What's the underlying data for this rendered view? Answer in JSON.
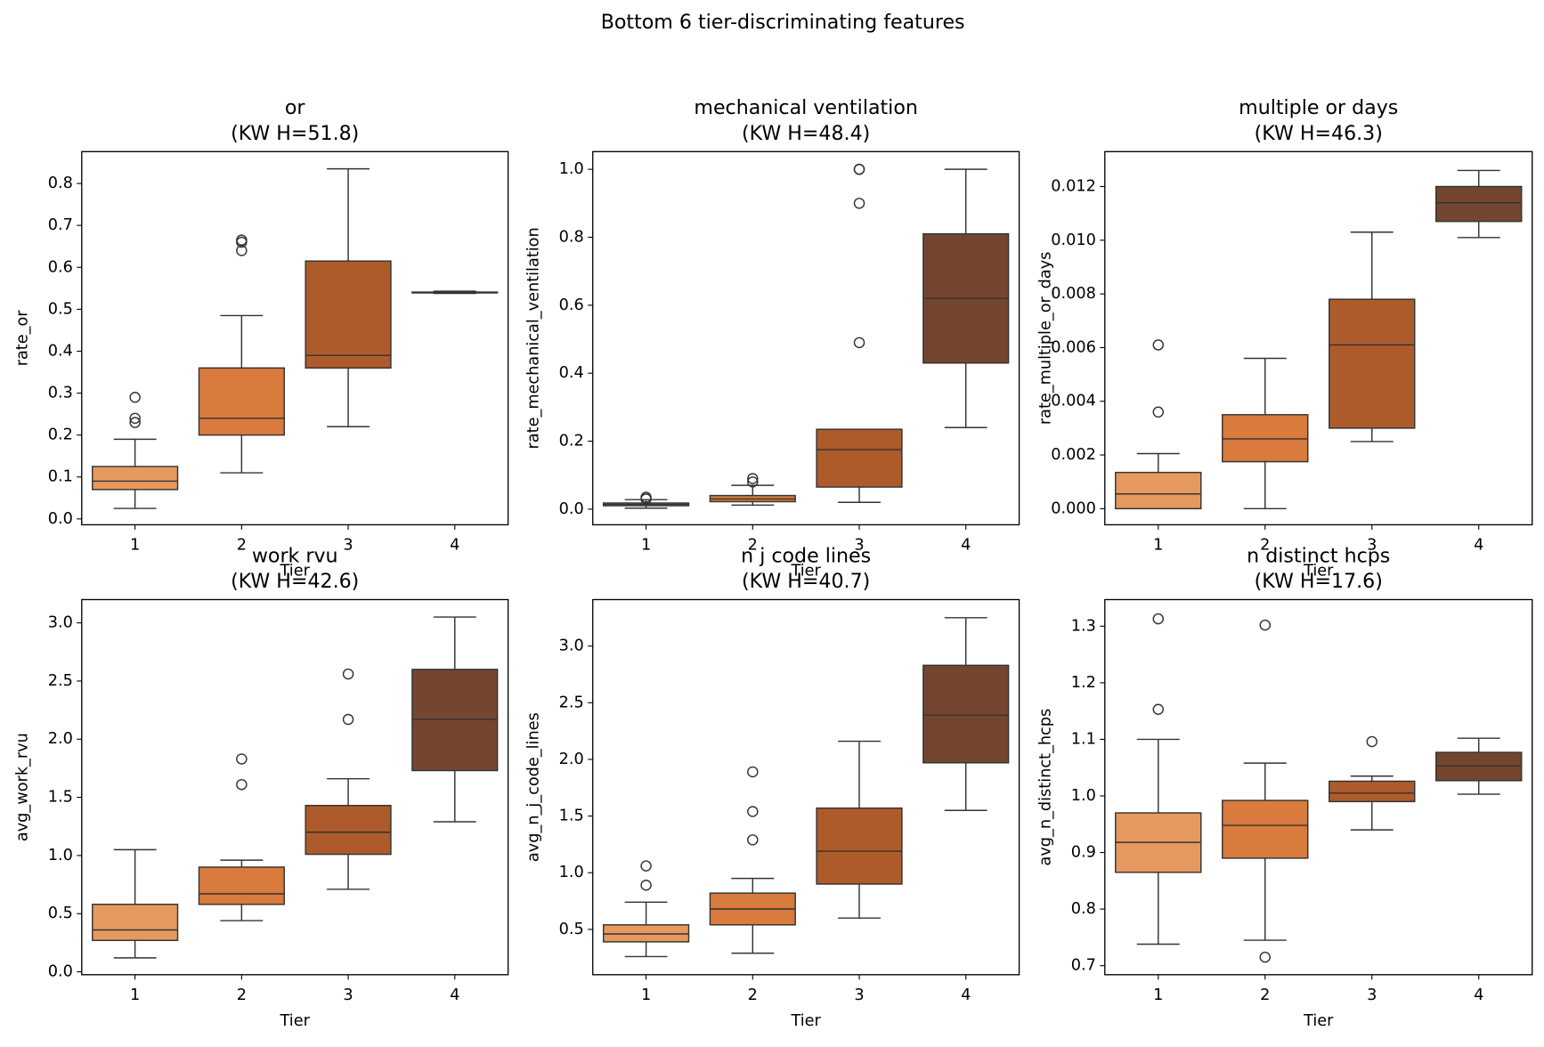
{
  "title": "Bottom 6 tier-discriminating features",
  "chart_data": [
    {
      "type": "box",
      "title": "or",
      "subtitle": "(KW H=51.8)",
      "x_label": "Tier",
      "y_label": "rate_or",
      "categories": [
        "1",
        "2",
        "3",
        "4"
      ],
      "colors": [
        "#e5995f",
        "#d87b3d",
        "#ae5b2b",
        "#744630"
      ],
      "ylim": [
        -0.014,
        0.876
      ],
      "yticks": [
        {
          "value": 0,
          "label": "0.0"
        },
        0.1,
        0.2,
        0.3,
        0.4,
        0.5,
        0.6,
        0.7,
        0.8
      ],
      "boxes": [
        {
          "min": 0.025,
          "q1": 0.07,
          "median": 0.09,
          "q3": 0.125,
          "max": 0.19,
          "outliers": [
            0.23,
            0.24,
            0.29
          ]
        },
        {
          "min": 0.11,
          "q1": 0.2,
          "median": 0.24,
          "q3": 0.36,
          "max": 0.485,
          "outliers": [
            0.64,
            0.66,
            0.665
          ]
        },
        {
          "min": 0.22,
          "q1": 0.36,
          "median": 0.39,
          "q3": 0.615,
          "max": 0.835,
          "outliers": []
        },
        {
          "min": 0.538,
          "q1": 0.539,
          "median": 0.54,
          "q3": 0.541,
          "max": 0.543,
          "outliers": []
        }
      ]
    },
    {
      "type": "box",
      "title": "mechanical ventilation",
      "subtitle": "(KW H=48.4)",
      "x_label": "Tier",
      "y_label": "rate_mechanical_ventilation",
      "categories": [
        "1",
        "2",
        "3",
        "4"
      ],
      "colors": [
        "#e5995f",
        "#d87b3d",
        "#ae5b2b",
        "#744630"
      ],
      "ylim": [
        -0.046,
        1.052
      ],
      "yticks": [
        {
          "value": 0,
          "label": "0.0"
        },
        0.2,
        0.4,
        0.6,
        0.8,
        {
          "value": 1,
          "label": "1.0"
        }
      ],
      "boxes": [
        {
          "min": 0.003,
          "q1": 0.01,
          "median": 0.014,
          "q3": 0.018,
          "max": 0.028,
          "outliers": [
            0.03,
            0.035
          ]
        },
        {
          "min": 0.012,
          "q1": 0.022,
          "median": 0.03,
          "q3": 0.04,
          "max": 0.07,
          "outliers": [
            0.08,
            0.09
          ]
        },
        {
          "min": 0.02,
          "q1": 0.065,
          "median": 0.175,
          "q3": 0.235,
          "max": 0.235,
          "outliers": [
            0.49,
            0.9,
            1.0,
            1.0
          ]
        },
        {
          "min": 0.24,
          "q1": 0.43,
          "median": 0.62,
          "q3": 0.81,
          "max": 1.0,
          "outliers": []
        }
      ]
    },
    {
      "type": "box",
      "title": "multiple or days",
      "subtitle": "(KW H=46.3)",
      "x_label": "Tier",
      "y_label": "rate_multiple_or_days",
      "categories": [
        "1",
        "2",
        "3",
        "4"
      ],
      "colors": [
        "#e5995f",
        "#d87b3d",
        "#ae5b2b",
        "#744630"
      ],
      "ylim": [
        -0.0006,
        0.0133
      ],
      "yticks": [
        {
          "value": 0,
          "label": "0.000"
        },
        0.002,
        0.004,
        0.006,
        0.008,
        {
          "value": 0.01,
          "label": "0.010"
        },
        0.012
      ],
      "boxes": [
        {
          "min": 0,
          "q1": 0,
          "median": 0.00055,
          "q3": 0.00135,
          "max": 0.00205,
          "outliers": [
            0.0036,
            0.0061
          ]
        },
        {
          "min": 0,
          "q1": 0.00175,
          "median": 0.0026,
          "q3": 0.0035,
          "max": 0.0056,
          "outliers": []
        },
        {
          "min": 0.0025,
          "q1": 0.003,
          "median": 0.0061,
          "q3": 0.0078,
          "max": 0.0103,
          "outliers": []
        },
        {
          "min": 0.0101,
          "q1": 0.0107,
          "median": 0.0114,
          "q3": 0.012,
          "max": 0.0126,
          "outliers": []
        }
      ]
    },
    {
      "type": "box",
      "title": "work rvu",
      "subtitle": "(KW H=42.6)",
      "x_label": "Tier",
      "y_label": "avg_work_rvu",
      "categories": [
        "1",
        "2",
        "3",
        "4"
      ],
      "colors": [
        "#e5995f",
        "#d87b3d",
        "#ae5b2b",
        "#744630"
      ],
      "ylim": [
        -0.025,
        3.2
      ],
      "yticks": [
        {
          "value": 0,
          "label": "0.0"
        },
        0.5,
        {
          "value": 1,
          "label": "1.0"
        },
        1.5,
        {
          "value": 2,
          "label": "2.0"
        },
        2.5,
        {
          "value": 3,
          "label": "3.0"
        }
      ],
      "boxes": [
        {
          "min": 0.12,
          "q1": 0.27,
          "median": 0.36,
          "q3": 0.58,
          "max": 1.05,
          "outliers": []
        },
        {
          "min": 0.44,
          "q1": 0.58,
          "median": 0.67,
          "q3": 0.9,
          "max": 0.96,
          "outliers": [
            1.61,
            1.83
          ]
        },
        {
          "min": 0.71,
          "q1": 1.01,
          "median": 1.2,
          "q3": 1.43,
          "max": 1.66,
          "outliers": [
            2.17,
            2.56
          ]
        },
        {
          "min": 1.29,
          "q1": 1.73,
          "median": 2.17,
          "q3": 2.6,
          "max": 3.05,
          "outliers": []
        }
      ]
    },
    {
      "type": "box",
      "title": "n j code lines",
      "subtitle": "(KW H=40.7)",
      "x_label": "Tier",
      "y_label": "avg_n_j_code_lines",
      "categories": [
        "1",
        "2",
        "3",
        "4"
      ],
      "colors": [
        "#e5995f",
        "#d87b3d",
        "#ae5b2b",
        "#744630"
      ],
      "ylim": [
        0.1,
        3.41
      ],
      "yticks": [
        0.5,
        {
          "value": 1,
          "label": "1.0"
        },
        1.5,
        {
          "value": 2,
          "label": "2.0"
        },
        2.5,
        {
          "value": 3,
          "label": "3.0"
        }
      ],
      "boxes": [
        {
          "min": 0.26,
          "q1": 0.39,
          "median": 0.46,
          "q3": 0.54,
          "max": 0.74,
          "outliers": [
            0.89,
            1.06
          ]
        },
        {
          "min": 0.29,
          "q1": 0.54,
          "median": 0.68,
          "q3": 0.82,
          "max": 0.95,
          "outliers": [
            1.29,
            1.54,
            1.89
          ]
        },
        {
          "min": 0.6,
          "q1": 0.9,
          "median": 1.19,
          "q3": 1.57,
          "max": 2.16,
          "outliers": []
        },
        {
          "min": 1.55,
          "q1": 1.97,
          "median": 2.39,
          "q3": 2.83,
          "max": 3.25,
          "outliers": []
        }
      ]
    },
    {
      "type": "box",
      "title": "n distinct hcps",
      "subtitle": "(KW H=17.6)",
      "x_label": "Tier",
      "y_label": "avg_n_distinct_hcps",
      "categories": [
        "1",
        "2",
        "3",
        "4"
      ],
      "colors": [
        "#e5995f",
        "#d87b3d",
        "#ae5b2b",
        "#744630"
      ],
      "ylim": [
        0.684,
        1.347
      ],
      "yticks": [
        0.7,
        0.8,
        0.9,
        {
          "value": 1,
          "label": "1.0"
        },
        1.1,
        1.2,
        1.3
      ],
      "boxes": [
        {
          "min": 0.738,
          "q1": 0.865,
          "median": 0.918,
          "q3": 0.97,
          "max": 1.1,
          "outliers": [
            1.153,
            1.313
          ]
        },
        {
          "min": 0.745,
          "q1": 0.89,
          "median": 0.948,
          "q3": 0.992,
          "max": 1.058,
          "outliers": [
            0.715,
            1.302
          ]
        },
        {
          "min": 0.94,
          "q1": 0.99,
          "median": 1.005,
          "q3": 1.026,
          "max": 1.035,
          "outliers": [
            1.096
          ]
        },
        {
          "min": 1.003,
          "q1": 1.027,
          "median": 1.053,
          "q3": 1.077,
          "max": 1.102,
          "outliers": []
        }
      ]
    }
  ]
}
